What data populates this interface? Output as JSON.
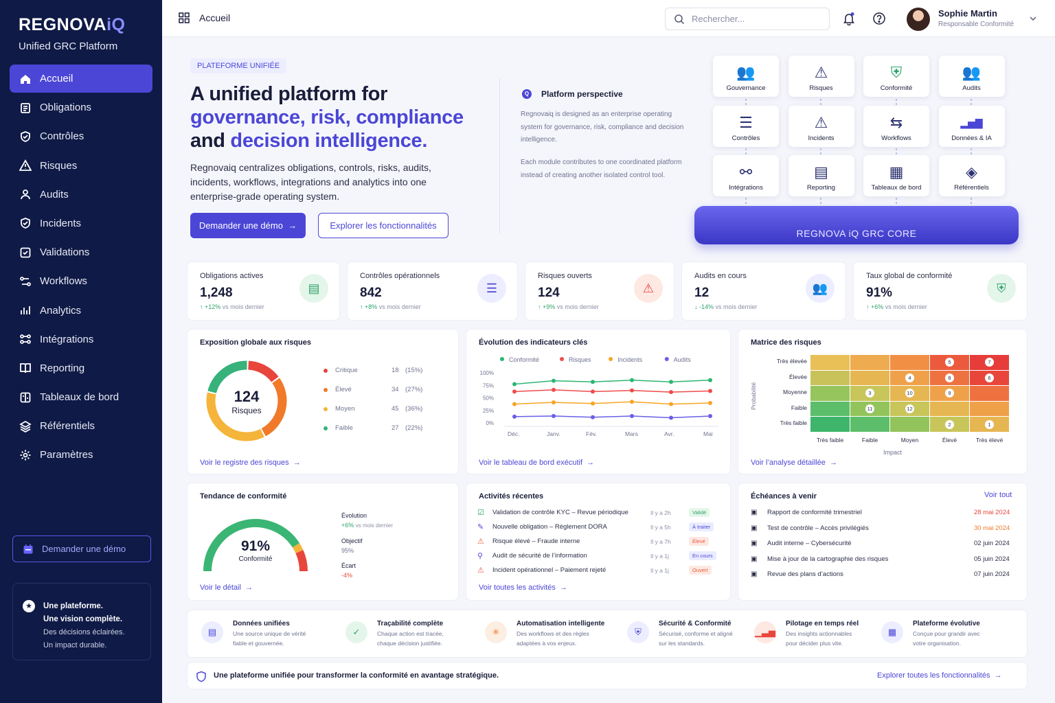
{
  "brand": {
    "name": "REGNOVA",
    "iq": "iQ",
    "subtitle": "Unified GRC Platform"
  },
  "nav": [
    {
      "label": "Accueil",
      "icon": "home-icon"
    },
    {
      "label": "Obligations",
      "icon": "clipboard-icon"
    },
    {
      "label": "Contrôles",
      "icon": "shield-check-icon"
    },
    {
      "label": "Risques",
      "icon": "warning-icon"
    },
    {
      "label": "Audits",
      "icon": "users-icon"
    },
    {
      "label": "Incidents",
      "icon": "shield-alert-icon"
    },
    {
      "label": "Validations",
      "icon": "check-square-icon"
    },
    {
      "label": "Workflows",
      "icon": "workflow-icon"
    },
    {
      "label": "Analytics",
      "icon": "analytics-icon"
    },
    {
      "label": "Intégrations",
      "icon": "integration-icon"
    },
    {
      "label": "Reporting",
      "icon": "book-icon"
    },
    {
      "label": "Tableaux de bord",
      "icon": "dashboard-icon"
    },
    {
      "label": "Référentiels",
      "icon": "layers-icon"
    },
    {
      "label": "Paramètres",
      "icon": "gear-icon"
    }
  ],
  "side_demo": "Demander une démo",
  "promo": {
    "l1": "Une plateforme.",
    "l2": "Une vision complète.",
    "l3": "Des décisions éclairées.",
    "l4": "Un impact durable."
  },
  "topbar": {
    "crumb": "Accueil",
    "search_placeholder": "Rechercher...",
    "user": "Sophie Martin",
    "role": "Responsable Conformité"
  },
  "hero": {
    "badge": "PLATEFORME UNIFIÉE",
    "h1a": "A unified platform for",
    "h1b": "governance, risk, compliance",
    "h1c": "and ",
    "h1d": "decision intelligence.",
    "lead": "Regnovaiq centralizes obligations, controls, risks, audits, incidents, workflows, integrations and analytics into one enterprise-grade operating system.",
    "btn_demo": "Demander une démo",
    "btn_explore": "Explorer les fonctionnalités"
  },
  "perspective": {
    "title": "Platform perspective",
    "p1": "Regnovaiq is designed as an enterprise operating system for governance, risk, compliance and decision intelligence.",
    "p2": "Each module contributes to one coordinated platform instead of creating another isolated control tool."
  },
  "modules": [
    "Gouvernance",
    "Risques",
    "Conformité",
    "Audits",
    "Contrôles",
    "Incidents",
    "Workflows",
    "Données & IA",
    "Intégrations",
    "Reporting",
    "Tableaux de bord",
    "Référentiels"
  ],
  "core": "REGNOVA iQ GRC CORE",
  "kpis": [
    {
      "label": "Obligations actives",
      "value": "1,248",
      "change": "↑ +12%",
      "suffix": "vs mois dernier",
      "color": "#2fa36b"
    },
    {
      "label": "Contrôles opérationnels",
      "value": "842",
      "change": "↑ +8%",
      "suffix": "vs mois dernier",
      "color": "#2fa36b"
    },
    {
      "label": "Risques ouverts",
      "value": "124",
      "change": "↑ +9%",
      "suffix": "vs mois dernier",
      "color": "#2fa36b"
    },
    {
      "label": "Audits en cours",
      "value": "12",
      "change": "↓ -14%",
      "suffix": "vs mois dernier",
      "color": "#2fa36b"
    },
    {
      "label": "Taux global de conformité",
      "value": "91%",
      "change": "↑ +6%",
      "suffix": "vs mois dernier",
      "color": "#2fa36b"
    }
  ],
  "exposure": {
    "title": "Exposition globale aux risques",
    "total": "124",
    "total_label": "Risques",
    "link": "Voir le registre des risques",
    "items": [
      {
        "label": "Critique",
        "count": "18",
        "pct": "(15%)",
        "color": "#e8453c"
      },
      {
        "label": "Élevé",
        "count": "34",
        "pct": "(27%)",
        "color": "#f07a2a"
      },
      {
        "label": "Moyen",
        "count": "45",
        "pct": "(36%)",
        "color": "#f5b43a"
      },
      {
        "label": "Faible",
        "count": "27",
        "pct": "(22%)",
        "color": "#36b27a"
      }
    ]
  },
  "chart_data": {
    "type": "line",
    "title": "Évolution des indicateurs clés",
    "categories": [
      "Déc.",
      "Janv.",
      "Fév.",
      "Mars",
      "Avr.",
      "Mai"
    ],
    "ylim": [
      0,
      100
    ],
    "yticks": [
      "100%",
      "75%",
      "50%",
      "25%",
      "0%"
    ],
    "series": [
      {
        "name": "Conformité",
        "color": "#2bb673",
        "values": [
          68,
          74,
          72,
          75,
          72,
          75
        ]
      },
      {
        "name": "Risques",
        "color": "#ef4b4b",
        "values": [
          55,
          58,
          55,
          57,
          54,
          56
        ]
      },
      {
        "name": "Incidents",
        "color": "#f5a524",
        "values": [
          33,
          36,
          34,
          37,
          33,
          35
        ]
      },
      {
        "name": "Audits",
        "color": "#6a5ee8",
        "values": [
          11,
          12,
          10,
          12,
          9,
          12
        ]
      }
    ]
  },
  "kpi_link": "Voir le tableau de bord exécutif",
  "matrix": {
    "title": "Matrice des risques",
    "ylabel": "Probabilité",
    "xlabel": "Impact",
    "rows": [
      "Très élevée",
      "Élevée",
      "Moyenne",
      "Faible",
      "Très faible"
    ],
    "cols": [
      "Très faible",
      "Faible",
      "Moyen",
      "Élevé",
      "Très élevé"
    ],
    "link": "Voir l’analyse détaillée",
    "cells": [
      [
        "#e9c057",
        "#eeab4f",
        "#f18f45",
        "#ec5a3d",
        "#e63d3a"
      ],
      [
        "#c9c25a",
        "#e6b652",
        "#efa14a",
        "#ee7140",
        "#e8463a"
      ],
      [
        "#95c55c",
        "#c8c55a",
        "#e6b652",
        "#efa14a",
        "#ee7140"
      ],
      [
        "#5cbe6a",
        "#93c45c",
        "#c8c55a",
        "#e6b652",
        "#efa14a"
      ],
      [
        "#3eb56a",
        "#5cbe6a",
        "#93c45c",
        "#c8c55a",
        "#e6b652"
      ]
    ],
    "counts": [
      [
        "",
        "",
        "",
        "5",
        "7"
      ],
      [
        "",
        "",
        "4",
        "8",
        "6"
      ],
      [
        "",
        "3",
        "10",
        "9",
        ""
      ],
      [
        "",
        "11",
        "12",
        "",
        ""
      ],
      [
        "",
        "",
        "",
        "2",
        "1"
      ]
    ]
  },
  "trend": {
    "title": "Tendance de conformité",
    "value": "91%",
    "label": "Conformité",
    "evol_label": "Évolution",
    "evol": "+6%",
    "evol_suffix": "vs mois dernier",
    "obj_label": "Objectif",
    "obj": "95%",
    "gap_label": "Écart",
    "gap": "-4%",
    "link": "Voir le détail",
    "progress": 0.91
  },
  "activities": {
    "title": "Activités récentes",
    "link": "Voir toutes les activités",
    "items": [
      {
        "text": "Validation de contrôle KYC – Revue périodique",
        "time": "Il y a 2h",
        "status": "Validé",
        "bg": "#e4f6ea",
        "fg": "#2fa36b",
        "icon": "check-icon",
        "ic": "#2fa36b"
      },
      {
        "text": "Nouvelle obligation – Règlement DORA",
        "time": "Il y a 5h",
        "status": "À traiter",
        "bg": "#e9ecff",
        "fg": "#4b46d6",
        "icon": "edit-icon",
        "ic": "#4b46d6"
      },
      {
        "text": "Risque élevé – Fraude interne",
        "time": "Il y a 7h",
        "status": "Élevé",
        "bg": "#fde8e2",
        "fg": "#ec5a3d",
        "icon": "warning-icon",
        "ic": "#ec5a3d"
      },
      {
        "text": "Audit de sécurité de l’information",
        "time": "Il y a 1j",
        "status": "En cours",
        "bg": "#e9ecff",
        "fg": "#4b46d6",
        "icon": "audit-icon",
        "ic": "#4b46d6"
      },
      {
        "text": "Incident opérationnel – Paiement rejeté",
        "time": "Il y a 1j",
        "status": "Ouvert",
        "bg": "#fde8e2",
        "fg": "#ec5a3d",
        "icon": "alert-icon",
        "ic": "#ec5a3d"
      }
    ]
  },
  "deadlines": {
    "title": "Échéances à venir",
    "link": "Voir tout",
    "items": [
      {
        "text": "Rapport de conformité trimestriel",
        "date": "28 mai 2024",
        "color": "#e8453c"
      },
      {
        "text": "Test de contrôle – Accès privilégiés",
        "date": "30 mai 2024",
        "color": "#f07a2a"
      },
      {
        "text": "Audit interne – Cybersécurité",
        "date": "02 juin 2024",
        "color": "#2b2e47"
      },
      {
        "text": "Mise à jour de la cartographie des risques",
        "date": "05 juin 2024",
        "color": "#2b2e47"
      },
      {
        "text": "Revue des plans d’actions",
        "date": "07 juin 2024",
        "color": "#2b2e47"
      }
    ]
  },
  "features": [
    {
      "title": "Données unifiées",
      "l1": "Une source unique de vérité",
      "l2": "fiable et gouvernée.",
      "icon": "document-icon",
      "color": "#4b46d6",
      "bg": "#eceeff"
    },
    {
      "title": "Traçabilité complète",
      "l1": "Chaque action est tracée,",
      "l2": "chaque décision justifiée.",
      "icon": "file-check-icon",
      "color": "#2fa36b",
      "bg": "#e4f6ea"
    },
    {
      "title": "Automatisation intelligente",
      "l1": "Des workflows et des règles",
      "l2": "adaptées à vos enjeux.",
      "icon": "automation-icon",
      "color": "#f07a2a",
      "bg": "#fdeee2"
    },
    {
      "title": "Sécurité & Conformité",
      "l1": "Sécurisé, conforme et aligné",
      "l2": "sur les standards.",
      "icon": "shield-icon",
      "color": "#4b46d6",
      "bg": "#eceeff"
    },
    {
      "title": "Pilotage en temps réel",
      "l1": "Des insights actionnables",
      "l2": "pour décider plus vite.",
      "icon": "chart-icon",
      "color": "#e8453c",
      "bg": "#fde8e2"
    },
    {
      "title": "Plateforme évolutive",
      "l1": "Conçue pour grandir avec",
      "l2": "votre organisation.",
      "icon": "cube-icon",
      "color": "#4b46d6",
      "bg": "#eceeff"
    }
  ],
  "footer": {
    "text": "Une plateforme unifiée pour transformer la conformité en avantage stratégique.",
    "link": "Explorer toutes les fonctionnalités"
  }
}
